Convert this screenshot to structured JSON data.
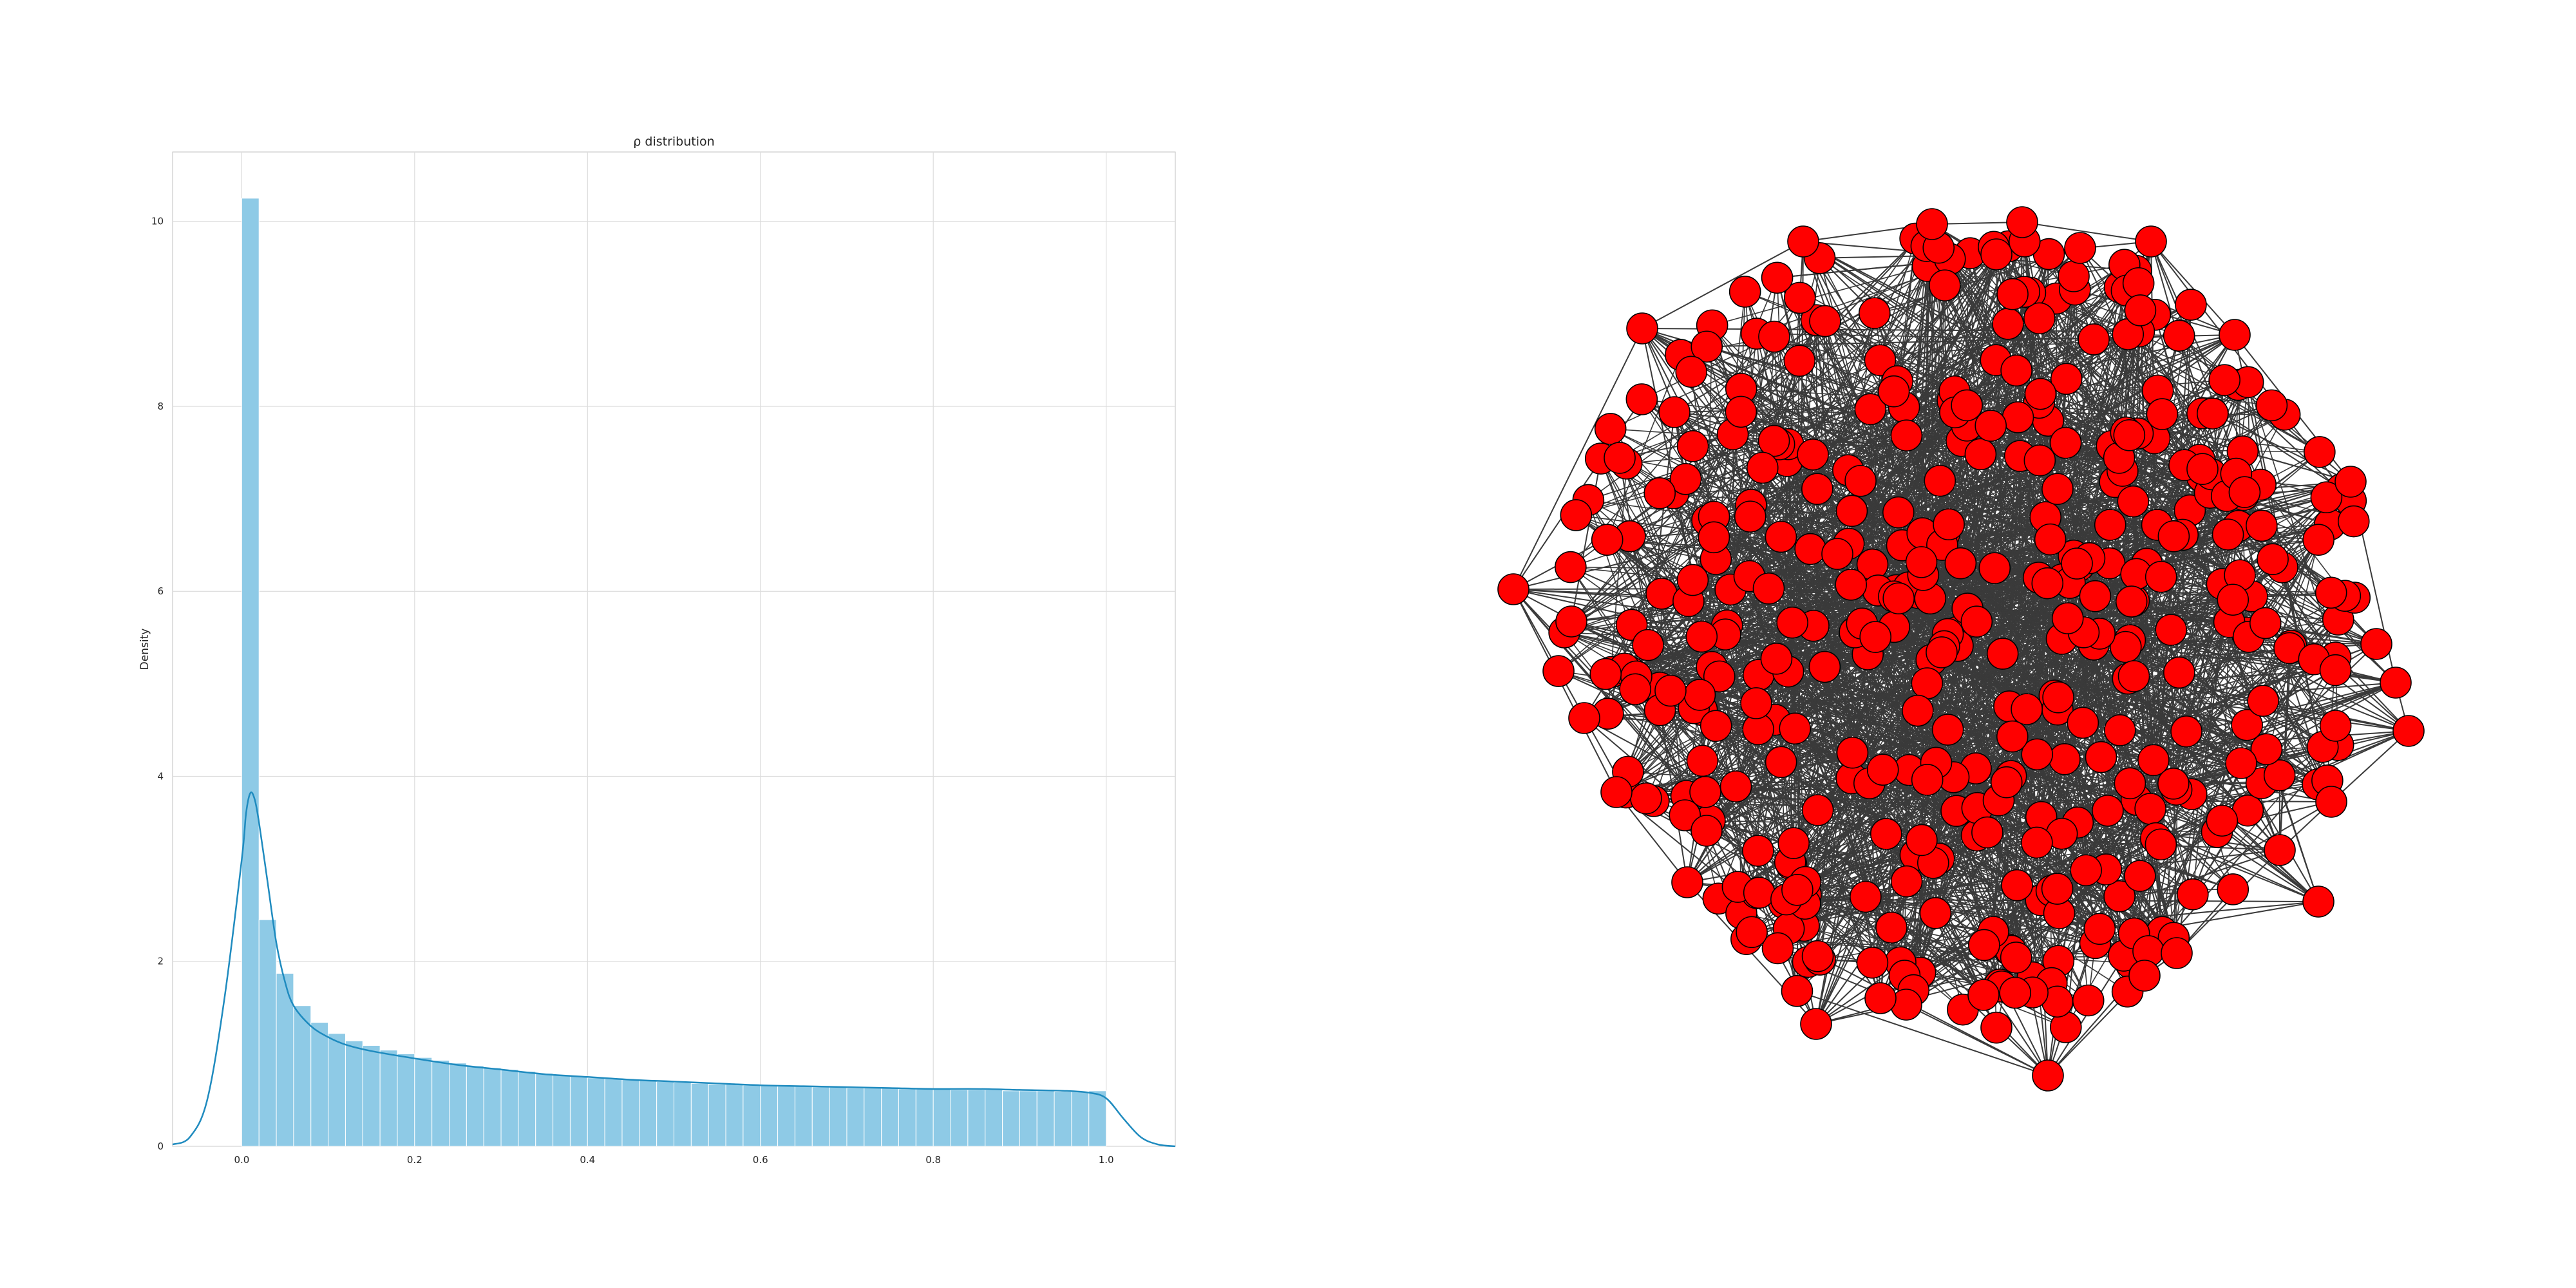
{
  "chart_data": [
    {
      "type": "bar",
      "subtype": "histogram-with-kde",
      "title": "ρ distribution",
      "xlabel": "",
      "ylabel": "Density",
      "xlim": [
        -0.08,
        1.08
      ],
      "ylim": [
        0,
        10.75
      ],
      "grid": true,
      "x_ticks": [
        "0.0",
        "0.2",
        "0.4",
        "0.6",
        "0.8",
        "1.0"
      ],
      "y_ticks": [
        "0",
        "2",
        "4",
        "6",
        "8",
        "10"
      ],
      "bar_color": "#8ecae6",
      "kde_color": "#1f8bbf",
      "bins": {
        "start": 0.0,
        "width": 0.02,
        "values": [
          10.25,
          2.45,
          1.87,
          1.52,
          1.34,
          1.22,
          1.14,
          1.09,
          1.04,
          1.0,
          0.96,
          0.93,
          0.9,
          0.87,
          0.85,
          0.83,
          0.81,
          0.79,
          0.77,
          0.76,
          0.74,
          0.73,
          0.72,
          0.71,
          0.7,
          0.69,
          0.68,
          0.67,
          0.67,
          0.66,
          0.66,
          0.65,
          0.65,
          0.64,
          0.64,
          0.63,
          0.63,
          0.63,
          0.62,
          0.62,
          0.62,
          0.61,
          0.61,
          0.61,
          0.6,
          0.6,
          0.6,
          0.59,
          0.59,
          0.6
        ]
      },
      "kde": {
        "x": [
          -0.08,
          -0.06,
          -0.04,
          -0.02,
          0.0,
          0.005,
          0.01,
          0.015,
          0.02,
          0.03,
          0.04,
          0.05,
          0.06,
          0.08,
          0.1,
          0.12,
          0.15,
          0.2,
          0.25,
          0.3,
          0.35,
          0.4,
          0.45,
          0.5,
          0.55,
          0.6,
          0.65,
          0.7,
          0.75,
          0.8,
          0.85,
          0.9,
          0.95,
          0.98,
          1.0,
          1.02,
          1.04,
          1.06,
          1.08
        ],
        "y": [
          0.02,
          0.1,
          0.5,
          1.6,
          3.1,
          3.6,
          3.82,
          3.75,
          3.5,
          2.85,
          2.2,
          1.78,
          1.52,
          1.3,
          1.18,
          1.1,
          1.03,
          0.95,
          0.88,
          0.83,
          0.78,
          0.75,
          0.72,
          0.7,
          0.68,
          0.66,
          0.65,
          0.64,
          0.63,
          0.62,
          0.62,
          0.61,
          0.6,
          0.58,
          0.52,
          0.3,
          0.1,
          0.02,
          0.0
        ]
      }
    },
    {
      "type": "network",
      "node_color": "#ff0000",
      "node_edge_color": "#000000",
      "edge_color": "#3a3a3a"
    }
  ]
}
